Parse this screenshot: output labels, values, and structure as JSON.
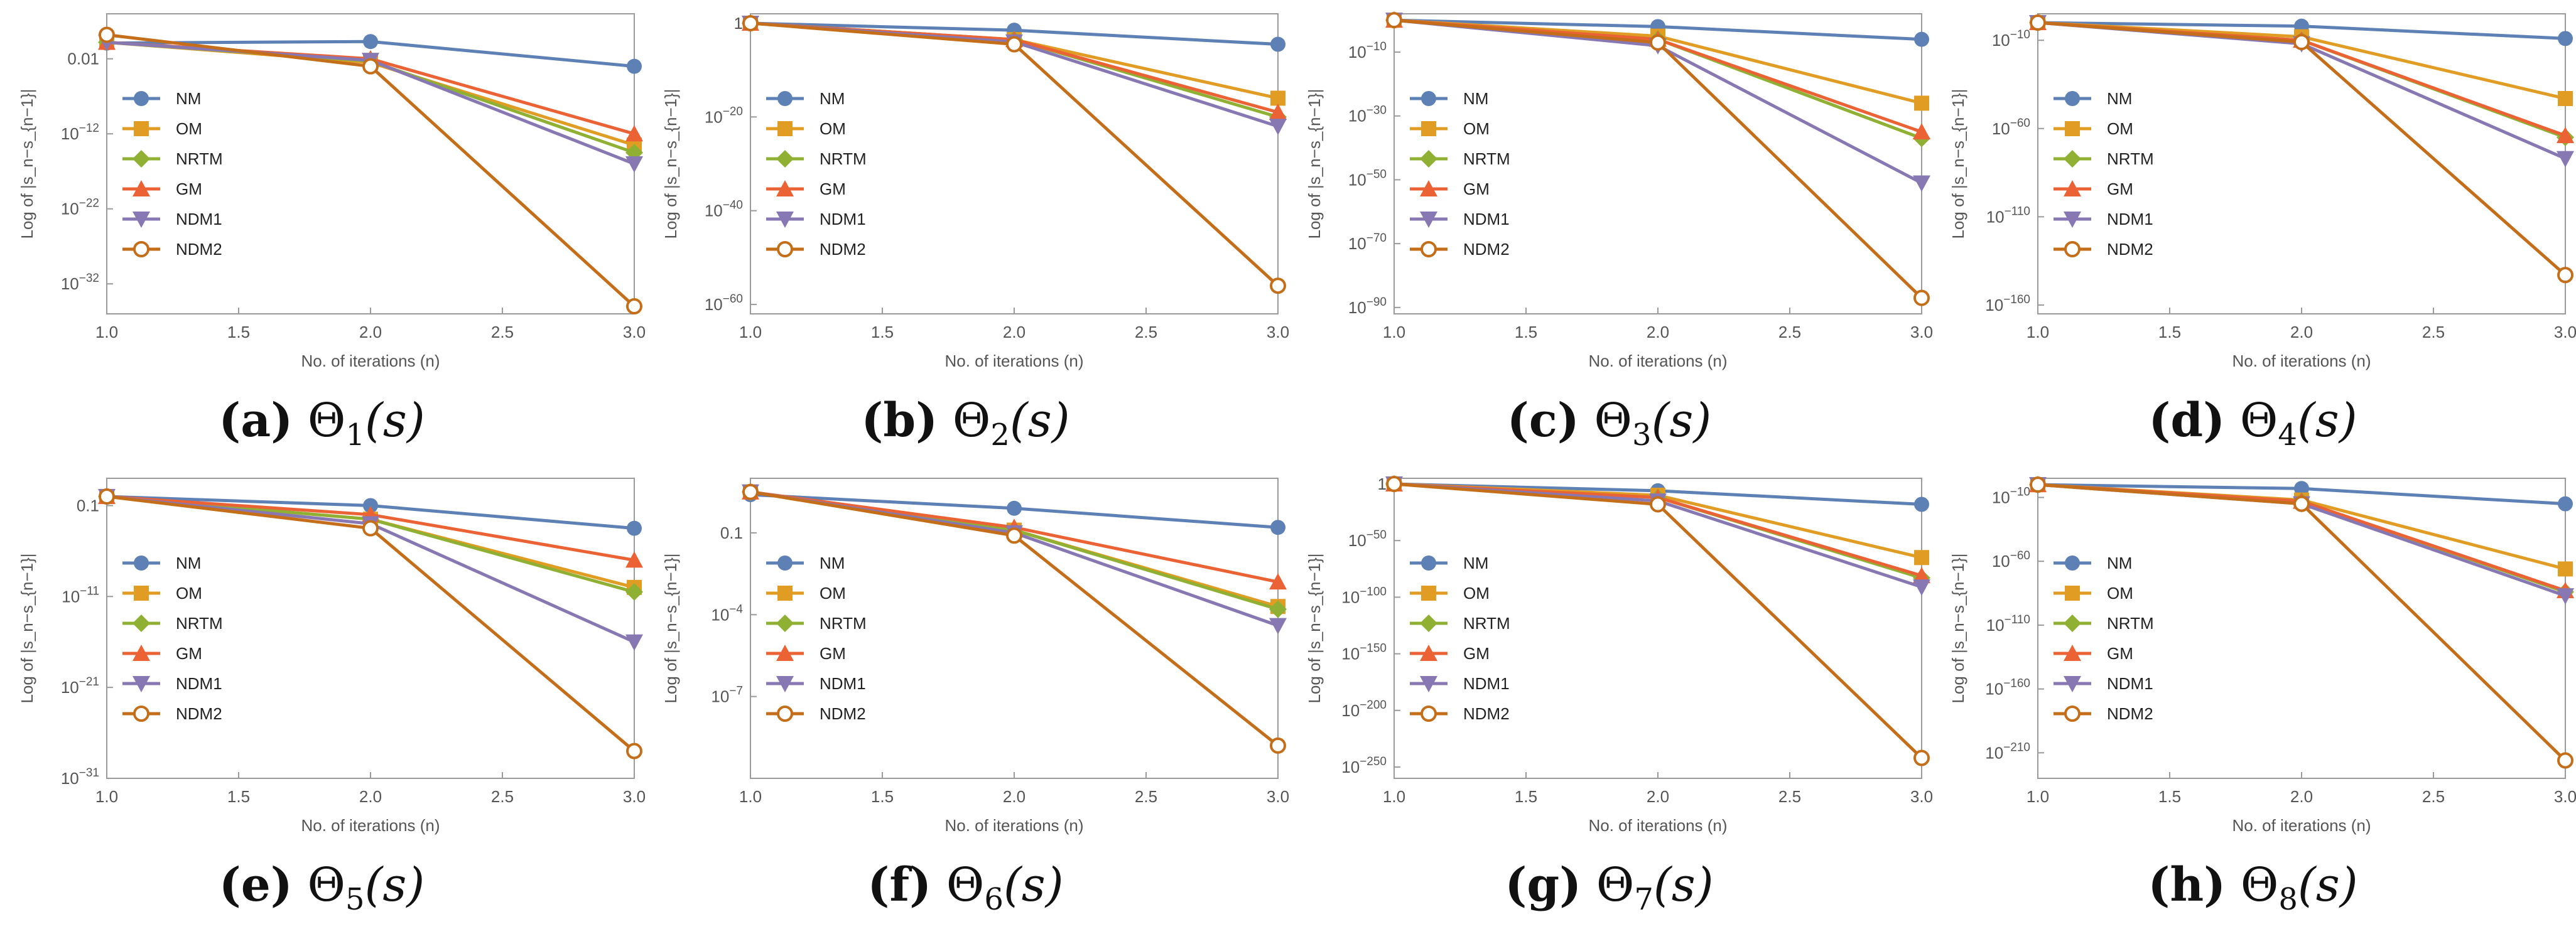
{
  "chart_data": [
    {
      "type": "line",
      "panel_label": "(a)",
      "title_symbol": "Θ",
      "title_index": "1",
      "title_arg": "(s)",
      "xlabel": "No. of iterations (n)",
      "ylabel": "Log of |s_n−s_{n−1}|",
      "log_y": true,
      "xlim": [
        1.0,
        3.0
      ],
      "ylim_exp": [
        -36,
        4
      ],
      "x_ticks": [
        "1.0",
        "1.5",
        "2.0",
        "2.5",
        "3.0"
      ],
      "y_tick_exps": [
        -32,
        -22,
        -12,
        -2
      ],
      "y_tick_labels": [
        "10^-32",
        "10^-22",
        "10^-12",
        "0.01"
      ],
      "legend_position": "left-middle",
      "x": [
        1,
        2,
        3
      ],
      "series": [
        {
          "name": "NM",
          "color": "#5e81b5",
          "marker": "circle",
          "log10_values": [
            0.1,
            0.3,
            -3.0
          ]
        },
        {
          "name": "OM",
          "color": "#e19c24",
          "marker": "square",
          "log10_values": [
            0.2,
            -2.5,
            -13.5
          ]
        },
        {
          "name": "NRTM",
          "color": "#8fb032",
          "marker": "diamond",
          "log10_values": [
            0.2,
            -2.3,
            -14.5
          ]
        },
        {
          "name": "GM",
          "color": "#eb6235",
          "marker": "triangle-up",
          "log10_values": [
            0.2,
            -2.0,
            -12.0
          ]
        },
        {
          "name": "NDM1",
          "color": "#8778b3",
          "marker": "triangle-down",
          "log10_values": [
            0.2,
            -2.2,
            -16.0
          ]
        },
        {
          "name": "NDM2",
          "color": "#c56e1a",
          "marker": "circle-open",
          "log10_values": [
            1.2,
            -3.0,
            -35.0
          ]
        }
      ]
    },
    {
      "type": "line",
      "panel_label": "(b)",
      "title_symbol": "Θ",
      "title_index": "2",
      "title_arg": "(s)",
      "xlabel": "No. of iterations (n)",
      "ylabel": "Log of |s_n−s_{n−1}|",
      "log_y": true,
      "xlim": [
        1.0,
        3.0
      ],
      "ylim_exp": [
        -62,
        2
      ],
      "x_ticks": [
        "1.0",
        "1.5",
        "2.0",
        "2.5",
        "3.0"
      ],
      "y_tick_exps": [
        -60,
        -40,
        -20,
        0
      ],
      "y_tick_labels": [
        "10^-60",
        "10^-40",
        "10^-20",
        "1"
      ],
      "legend_position": "left-middle",
      "x": [
        1,
        2,
        3
      ],
      "series": [
        {
          "name": "NM",
          "color": "#5e81b5",
          "marker": "circle",
          "log10_values": [
            0,
            -1.5,
            -4.5
          ]
        },
        {
          "name": "OM",
          "color": "#e19c24",
          "marker": "square",
          "log10_values": [
            0,
            -3.5,
            -16.0
          ]
        },
        {
          "name": "NRTM",
          "color": "#8fb032",
          "marker": "diamond",
          "log10_values": [
            0,
            -3.5,
            -20.0
          ]
        },
        {
          "name": "GM",
          "color": "#eb6235",
          "marker": "triangle-up",
          "log10_values": [
            0,
            -3.5,
            -19.0
          ]
        },
        {
          "name": "NDM1",
          "color": "#8778b3",
          "marker": "triangle-down",
          "log10_values": [
            0,
            -4.0,
            -22.0
          ]
        },
        {
          "name": "NDM2",
          "color": "#c56e1a",
          "marker": "circle-open",
          "log10_values": [
            0,
            -4.5,
            -56.0
          ]
        }
      ]
    },
    {
      "type": "line",
      "panel_label": "(c)",
      "title_symbol": "Θ",
      "title_index": "3",
      "title_arg": "(s)",
      "xlabel": "No. of iterations (n)",
      "ylabel": "Log of |s_n−s_{n−1}|",
      "log_y": true,
      "xlim": [
        1.0,
        3.0
      ],
      "ylim_exp": [
        -92,
        2
      ],
      "x_ticks": [
        "1.0",
        "1.5",
        "2.0",
        "2.5",
        "3.0"
      ],
      "y_tick_exps": [
        -90,
        -70,
        -50,
        -30,
        -10
      ],
      "y_tick_labels": [
        "10^-90",
        "10^-70",
        "10^-50",
        "10^-30",
        "10^-10"
      ],
      "legend_position": "left-middle",
      "x": [
        1,
        2,
        3
      ],
      "series": [
        {
          "name": "NM",
          "color": "#5e81b5",
          "marker": "circle",
          "log10_values": [
            0,
            -2.0,
            -6.0
          ]
        },
        {
          "name": "OM",
          "color": "#e19c24",
          "marker": "square",
          "log10_values": [
            0,
            -5.0,
            -26.0
          ]
        },
        {
          "name": "NRTM",
          "color": "#8fb032",
          "marker": "diamond",
          "log10_values": [
            0,
            -6.0,
            -37.0
          ]
        },
        {
          "name": "GM",
          "color": "#eb6235",
          "marker": "triangle-up",
          "log10_values": [
            0,
            -6.0,
            -35.0
          ]
        },
        {
          "name": "NDM1",
          "color": "#8778b3",
          "marker": "triangle-down",
          "log10_values": [
            0,
            -8.0,
            -51.0
          ]
        },
        {
          "name": "NDM2",
          "color": "#c56e1a",
          "marker": "circle-open",
          "log10_values": [
            0,
            -7.0,
            -87.0
          ]
        }
      ]
    },
    {
      "type": "line",
      "panel_label": "(d)",
      "title_symbol": "Θ",
      "title_index": "4",
      "title_arg": "(s)",
      "xlabel": "No. of iterations (n)",
      "ylabel": "Log of |s_n−s_{n−1}|",
      "log_y": true,
      "xlim": [
        1.0,
        3.0
      ],
      "ylim_exp": [
        -165,
        5
      ],
      "x_ticks": [
        "1.0",
        "1.5",
        "2.0",
        "2.5",
        "3.0"
      ],
      "y_tick_exps": [
        -160,
        -110,
        -60,
        -10
      ],
      "y_tick_labels": [
        "10^-160",
        "10^-110",
        "10^-60",
        "10^-10"
      ],
      "legend_position": "left-middle",
      "x": [
        1,
        2,
        3
      ],
      "series": [
        {
          "name": "NM",
          "color": "#5e81b5",
          "marker": "circle",
          "log10_values": [
            0,
            -2.0,
            -9.0
          ]
        },
        {
          "name": "OM",
          "color": "#e19c24",
          "marker": "square",
          "log10_values": [
            0,
            -8.0,
            -43.0
          ]
        },
        {
          "name": "NRTM",
          "color": "#8fb032",
          "marker": "diamond",
          "log10_values": [
            0,
            -10.0,
            -65.0
          ]
        },
        {
          "name": "GM",
          "color": "#eb6235",
          "marker": "triangle-up",
          "log10_values": [
            0,
            -10.0,
            -64.0
          ]
        },
        {
          "name": "NDM1",
          "color": "#8778b3",
          "marker": "triangle-down",
          "log10_values": [
            0,
            -12.0,
            -77.0
          ]
        },
        {
          "name": "NDM2",
          "color": "#c56e1a",
          "marker": "circle-open",
          "log10_values": [
            0,
            -11.0,
            -143.0
          ]
        }
      ]
    },
    {
      "type": "line",
      "panel_label": "(e)",
      "title_symbol": "Θ",
      "title_index": "5",
      "title_arg": "(s)",
      "xlabel": "No. of iterations (n)",
      "ylabel": "Log of |s_n−s_{n−1}|",
      "log_y": true,
      "xlim": [
        1.0,
        3.0
      ],
      "ylim_exp": [
        -31,
        2
      ],
      "x_ticks": [
        "1.0",
        "1.5",
        "2.0",
        "2.5",
        "3.0"
      ],
      "y_tick_exps": [
        -31,
        -21,
        -11,
        -1
      ],
      "y_tick_labels": [
        "10^-31",
        "10^-21",
        "10^-11",
        "0.1"
      ],
      "legend_position": "left-middle",
      "x": [
        1,
        2,
        3
      ],
      "series": [
        {
          "name": "NM",
          "color": "#5e81b5",
          "marker": "circle",
          "log10_values": [
            0,
            -1.0,
            -3.5
          ]
        },
        {
          "name": "OM",
          "color": "#e19c24",
          "marker": "square",
          "log10_values": [
            0,
            -2.5,
            -10.0
          ]
        },
        {
          "name": "NRTM",
          "color": "#8fb032",
          "marker": "diamond",
          "log10_values": [
            0,
            -2.5,
            -10.5
          ]
        },
        {
          "name": "GM",
          "color": "#eb6235",
          "marker": "triangle-up",
          "log10_values": [
            0,
            -2.0,
            -7.0
          ]
        },
        {
          "name": "NDM1",
          "color": "#8778b3",
          "marker": "triangle-down",
          "log10_values": [
            0,
            -3.0,
            -16.0
          ]
        },
        {
          "name": "NDM2",
          "color": "#c56e1a",
          "marker": "circle-open",
          "log10_values": [
            0,
            -3.5,
            -28.0
          ]
        }
      ]
    },
    {
      "type": "line",
      "panel_label": "(f)",
      "title_symbol": "Θ",
      "title_index": "6",
      "title_arg": "(s)",
      "xlabel": "No. of iterations (n)",
      "ylabel": "Log of |s_n−s_{n−1}|",
      "log_y": true,
      "xlim": [
        1.0,
        3.0
      ],
      "ylim_exp": [
        -10,
        1
      ],
      "x_ticks": [
        "1.0",
        "1.5",
        "2.0",
        "2.5",
        "3.0"
      ],
      "y_tick_exps": [
        -7,
        -4,
        -1
      ],
      "y_tick_labels": [
        "10^-7",
        "10^-4",
        "0.1"
      ],
      "legend_position": "left-middle",
      "x": [
        1,
        2,
        3
      ],
      "series": [
        {
          "name": "NM",
          "color": "#5e81b5",
          "marker": "circle",
          "log10_values": [
            0.4,
            -0.1,
            -0.8
          ]
        },
        {
          "name": "OM",
          "color": "#e19c24",
          "marker": "square",
          "log10_values": [
            0.5,
            -0.9,
            -3.7
          ]
        },
        {
          "name": "NRTM",
          "color": "#8fb032",
          "marker": "diamond",
          "log10_values": [
            0.5,
            -0.9,
            -3.8
          ]
        },
        {
          "name": "GM",
          "color": "#eb6235",
          "marker": "triangle-up",
          "log10_values": [
            0.5,
            -0.8,
            -2.8
          ]
        },
        {
          "name": "NDM1",
          "color": "#8778b3",
          "marker": "triangle-down",
          "log10_values": [
            0.5,
            -1.0,
            -4.4
          ]
        },
        {
          "name": "NDM2",
          "color": "#c56e1a",
          "marker": "circle-open",
          "log10_values": [
            0.5,
            -1.1,
            -8.8
          ]
        }
      ]
    },
    {
      "type": "line",
      "panel_label": "(g)",
      "title_symbol": "Θ",
      "title_index": "7",
      "title_arg": "(s)",
      "xlabel": "No. of iterations (n)",
      "ylabel": "Log of |s_n−s_{n−1}|",
      "log_y": true,
      "xlim": [
        1.0,
        3.0
      ],
      "ylim_exp": [
        -260,
        5
      ],
      "x_ticks": [
        "1.0",
        "1.5",
        "2.0",
        "2.5",
        "3.0"
      ],
      "y_tick_exps": [
        -250,
        -200,
        -150,
        -100,
        -50,
        0
      ],
      "y_tick_labels": [
        "10^-250",
        "10^-200",
        "10^-150",
        "10^-100",
        "10^-50",
        "1"
      ],
      "legend_position": "left-middle",
      "x": [
        1,
        2,
        3
      ],
      "series": [
        {
          "name": "NM",
          "color": "#5e81b5",
          "marker": "circle",
          "log10_values": [
            0,
            -6.0,
            -18.0
          ]
        },
        {
          "name": "OM",
          "color": "#e19c24",
          "marker": "square",
          "log10_values": [
            0,
            -10.0,
            -65.0
          ]
        },
        {
          "name": "NRTM",
          "color": "#8fb032",
          "marker": "diamond",
          "log10_values": [
            0,
            -12.0,
            -83.0
          ]
        },
        {
          "name": "GM",
          "color": "#eb6235",
          "marker": "triangle-up",
          "log10_values": [
            0,
            -12.0,
            -81.0
          ]
        },
        {
          "name": "NDM1",
          "color": "#8778b3",
          "marker": "triangle-down",
          "log10_values": [
            0,
            -15.0,
            -91.0
          ]
        },
        {
          "name": "NDM2",
          "color": "#c56e1a",
          "marker": "circle-open",
          "log10_values": [
            0,
            -18.0,
            -242.0
          ]
        }
      ]
    },
    {
      "type": "line",
      "panel_label": "(h)",
      "title_symbol": "Θ",
      "title_index": "8",
      "title_arg": "(s)",
      "xlabel": "No. of iterations (n)",
      "ylabel": "Log of |s_n−s_{n−1}|",
      "log_y": true,
      "xlim": [
        1.0,
        3.0
      ],
      "ylim_exp": [
        -230,
        5
      ],
      "x_ticks": [
        "1.0",
        "1.5",
        "2.0",
        "2.5",
        "3.0"
      ],
      "y_tick_exps": [
        -210,
        -160,
        -110,
        -60,
        -10
      ],
      "y_tick_labels": [
        "10^-210",
        "10^-160",
        "10^-110",
        "10^-60",
        "10^-10"
      ],
      "legend_position": "left-middle",
      "x": [
        1,
        2,
        3
      ],
      "series": [
        {
          "name": "NM",
          "color": "#5e81b5",
          "marker": "circle",
          "log10_values": [
            0,
            -3.0,
            -15.0
          ]
        },
        {
          "name": "OM",
          "color": "#e19c24",
          "marker": "square",
          "log10_values": [
            0,
            -12.0,
            -66.0
          ]
        },
        {
          "name": "NRTM",
          "color": "#8fb032",
          "marker": "diamond",
          "log10_values": [
            0,
            -13.0,
            -84.0
          ]
        },
        {
          "name": "GM",
          "color": "#eb6235",
          "marker": "triangle-up",
          "log10_values": [
            0,
            -13.0,
            -83.0
          ]
        },
        {
          "name": "NDM1",
          "color": "#8778b3",
          "marker": "triangle-down",
          "log10_values": [
            0,
            -15.0,
            -87.0
          ]
        },
        {
          "name": "NDM2",
          "color": "#c56e1a",
          "marker": "circle-open",
          "log10_values": [
            0,
            -15.0,
            -216.0
          ]
        }
      ]
    }
  ]
}
